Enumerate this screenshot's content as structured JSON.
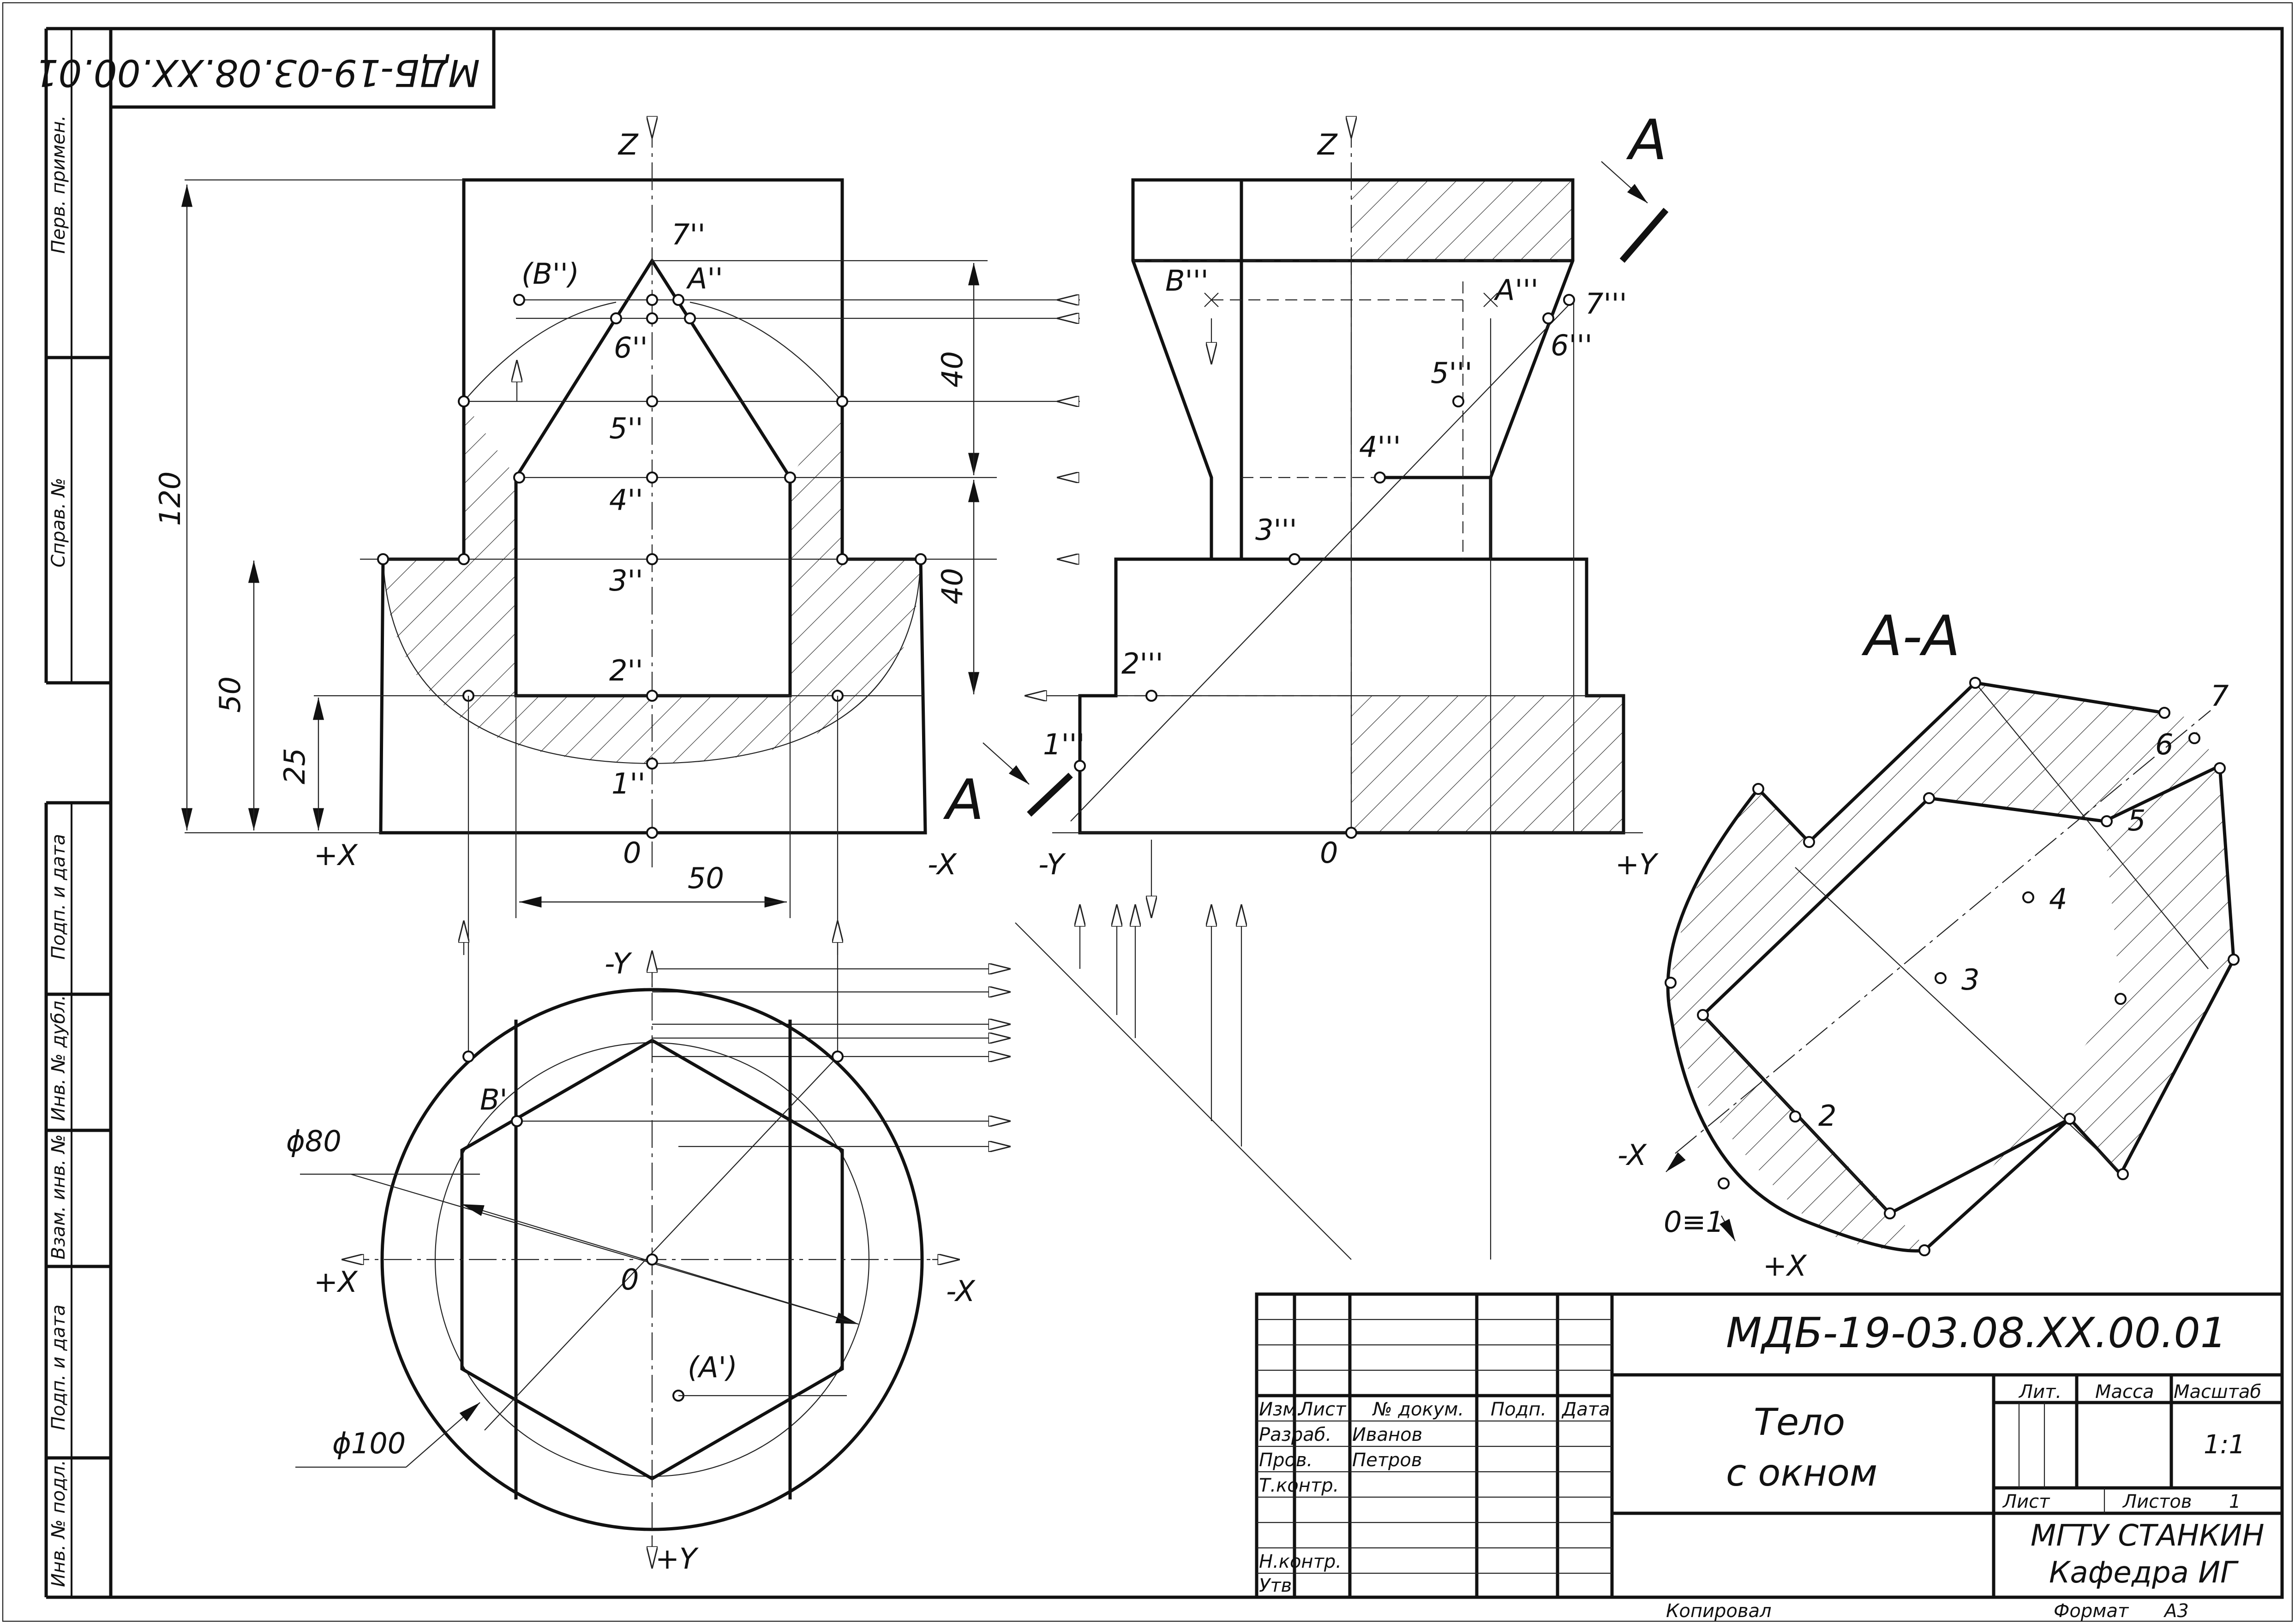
{
  "stamp": {
    "code_rotated": "МДБ-19-03.08.XX.00.01"
  },
  "side_strip": {
    "top": [
      "Перв. примен.",
      "Справ. №"
    ],
    "bottom": [
      "Подп. и дата",
      "Инв. № дубл.",
      "Взам. инв. №",
      "Подп. и дата",
      "Инв. № подл."
    ]
  },
  "front_view": {
    "axis_z": "Z",
    "axis_plus_x": "+X",
    "axis_minus_x": "-X",
    "origin": "0",
    "points": [
      "(B'')",
      "A''",
      "7''",
      "6''",
      "5''",
      "4''",
      "3''",
      "2''",
      "1''"
    ],
    "dims": [
      "120",
      "50",
      "25",
      "40",
      "40",
      "50"
    ]
  },
  "side_view": {
    "axis_z": "Z",
    "axis_minus_y": "-Y",
    "axis_plus_y": "+Y",
    "origin": "0",
    "points": [
      "B'''",
      "A'''",
      "7'''",
      "6'''",
      "5'''",
      "4'''",
      "3'''",
      "2'''",
      "1'''"
    ],
    "cut_label_top": "A",
    "cut_label_bottom": "A"
  },
  "top_view": {
    "axis_minus_y": "-Y",
    "axis_plus_y": "+Y",
    "axis_plus_x": "+X",
    "axis_minus_x": "-X",
    "origin": "0",
    "points": [
      "B'",
      "(A')"
    ],
    "dims": [
      "ϕ80",
      "ϕ100"
    ]
  },
  "section": {
    "title": "А-А",
    "points": [
      "2",
      "3",
      "4",
      "5",
      "6",
      "7"
    ],
    "axis_minus_x": "-X",
    "axis_plus_x": "+X",
    "origin": "0≡1"
  },
  "title_block": {
    "code": "МДБ-19-03.08.XX.00.01",
    "name_line1": "Тело",
    "name_line2": "с окном",
    "headers": [
      "Изм.",
      "Лист",
      "№ докум.",
      "Подп.",
      "Дата"
    ],
    "roles": [
      "Разраб.",
      "Пров.",
      "Т.контр.",
      "Н.контр.",
      "Утв."
    ],
    "names": [
      "Иванов",
      "Петров"
    ],
    "lit": "Лит.",
    "mass": "Масса",
    "scale_label": "Масштаб",
    "scale": "1:1",
    "sheet": "Лист",
    "sheets": "Листов",
    "sheets_count": "1",
    "org_line1": "МГТУ СТАНКИН",
    "org_line2": "Кафедра ИГ",
    "copied": "Копировал",
    "format_label": "Формат",
    "format_value": "А3"
  }
}
